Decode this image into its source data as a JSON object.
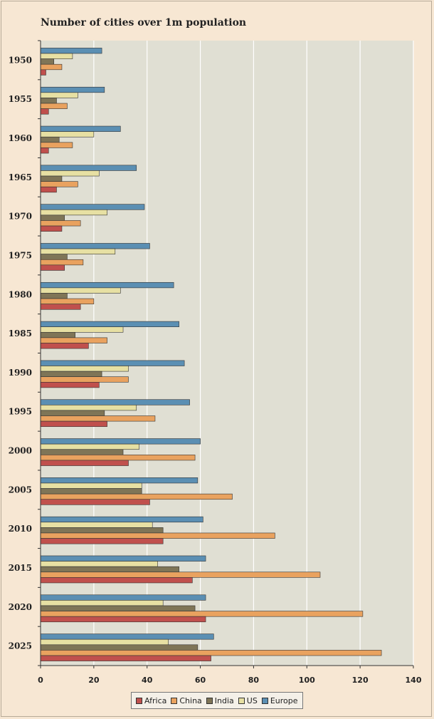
{
  "chart_data": {
    "type": "bar",
    "orientation": "horizontal",
    "title": "Number of cities over 1m population",
    "xlabel": "",
    "ylabel": "",
    "categories": [
      "1950",
      "1955",
      "1960",
      "1965",
      "1970",
      "1975",
      "1980",
      "1985",
      "1990",
      "1995",
      "2000",
      "2005",
      "2010",
      "2015",
      "2020",
      "2025"
    ],
    "xlim": [
      0,
      140
    ],
    "xticks": [
      0,
      20,
      40,
      60,
      80,
      100,
      120,
      140
    ],
    "grid": true,
    "legend_position": "bottom",
    "series": [
      {
        "name": "Africa",
        "color": "#c0504d",
        "values": [
          2,
          3,
          3,
          6,
          8,
          9,
          15,
          18,
          22,
          25,
          33,
          41,
          46,
          57,
          62,
          64
        ]
      },
      {
        "name": "China",
        "color": "#e9a25f",
        "values": [
          8,
          10,
          12,
          14,
          15,
          16,
          20,
          25,
          33,
          43,
          58,
          72,
          88,
          105,
          121,
          128
        ]
      },
      {
        "name": "India",
        "color": "#7f7557",
        "values": [
          5,
          6,
          7,
          8,
          9,
          10,
          10,
          13,
          23,
          24,
          31,
          38,
          46,
          52,
          58,
          59
        ]
      },
      {
        "name": "US",
        "color": "#e7e0a3",
        "values": [
          12,
          14,
          20,
          22,
          25,
          28,
          30,
          31,
          33,
          36,
          37,
          38,
          42,
          44,
          46,
          48
        ]
      },
      {
        "name": "Europe",
        "color": "#5b8fb3",
        "values": [
          23,
          24,
          30,
          36,
          39,
          41,
          50,
          52,
          54,
          56,
          60,
          59,
          61,
          62,
          62,
          65
        ]
      }
    ]
  }
}
